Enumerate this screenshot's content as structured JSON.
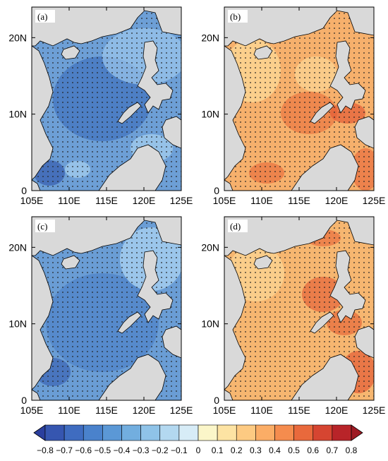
{
  "panels": [
    {
      "id": "a",
      "label": "(a)",
      "sign": "negative"
    },
    {
      "id": "b",
      "label": "(b)",
      "sign": "positive"
    },
    {
      "id": "c",
      "label": "(c)",
      "sign": "negative"
    },
    {
      "id": "d",
      "label": "(d)",
      "sign": "positive"
    }
  ],
  "axes": {
    "lon_ticks": [
      "105E",
      "110E",
      "115E",
      "120E",
      "125E"
    ],
    "lat_ticks": [
      "0",
      "10N",
      "20N"
    ],
    "lon_range": [
      105,
      125
    ],
    "lat_range": [
      0,
      24
    ]
  },
  "colorbar": {
    "labels": [
      "−0.8",
      "−0.7",
      "−0.6",
      "−0.5",
      "−0.4",
      "−0.3",
      "−0.2",
      "−0.1",
      "0",
      "0.1",
      "0.2",
      "0.3",
      "0.4",
      "0.5",
      "0.6",
      "0.7",
      "0.8"
    ],
    "colors": [
      "#2b3f9e",
      "#3656b0",
      "#3f6cc0",
      "#4a82cc",
      "#5b98d6",
      "#72aedf",
      "#8fc3e8",
      "#b3d8f0",
      "#d7ecf7",
      "#fbf6c9",
      "#fde3a3",
      "#fdca82",
      "#fbad66",
      "#f58c4e",
      "#e9693c",
      "#d64531",
      "#b82429",
      "#9e1a23"
    ]
  },
  "map_colors": {
    "land": "#d9d9d9",
    "stipple": "#222222"
  }
}
